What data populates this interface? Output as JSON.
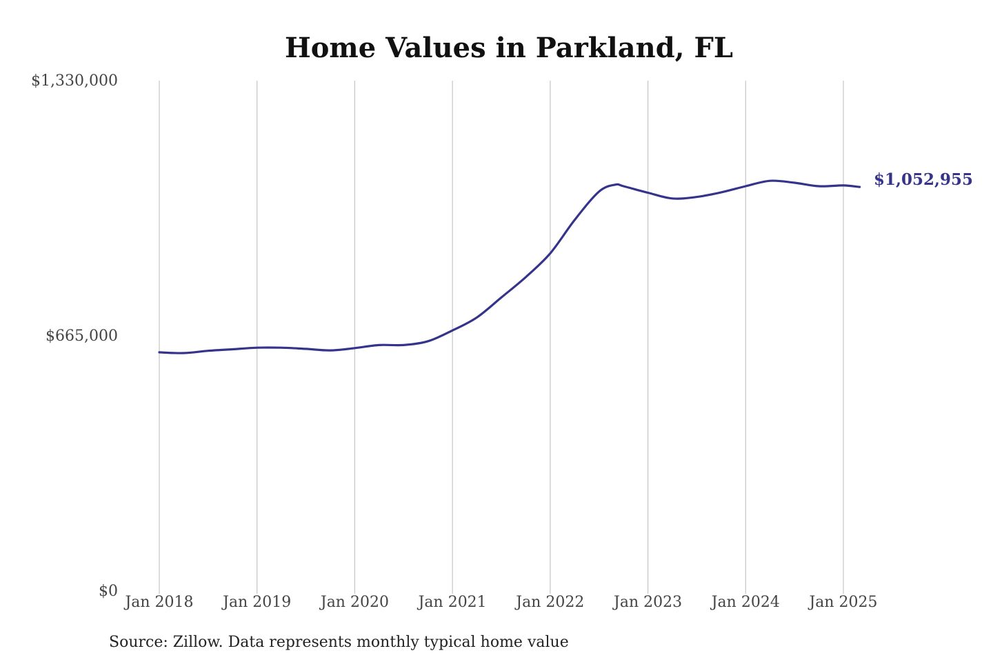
{
  "chart_data": {
    "type": "line",
    "title": "Home Values in Parkland, FL",
    "xlabel": "",
    "ylabel": "",
    "ylim": [
      0,
      1330000
    ],
    "xlim": [
      "2018-01",
      "2025-03"
    ],
    "y_ticks": [
      {
        "value": 0,
        "label": "$0"
      },
      {
        "value": 665000,
        "label": "$665,000"
      },
      {
        "value": 1330000,
        "label": "$1,330,000"
      }
    ],
    "x_ticks": [
      {
        "date": "2018-01",
        "label": "Jan 2018"
      },
      {
        "date": "2019-01",
        "label": "Jan 2019"
      },
      {
        "date": "2020-01",
        "label": "Jan 2020"
      },
      {
        "date": "2021-01",
        "label": "Jan 2021"
      },
      {
        "date": "2022-01",
        "label": "Jan 2022"
      },
      {
        "date": "2023-01",
        "label": "Jan 2023"
      },
      {
        "date": "2024-01",
        "label": "Jan 2024"
      },
      {
        "date": "2025-01",
        "label": "Jan 2025"
      }
    ],
    "grid": {
      "vertical": true,
      "horizontal": false
    },
    "line_color": "#35338a",
    "series": [
      {
        "name": "",
        "points": [
          {
            "x": "2018-01",
            "y": 622000
          },
          {
            "x": "2018-04",
            "y": 620000
          },
          {
            "x": "2018-07",
            "y": 626000
          },
          {
            "x": "2018-10",
            "y": 630000
          },
          {
            "x": "2019-01",
            "y": 634000
          },
          {
            "x": "2019-04",
            "y": 634000
          },
          {
            "x": "2019-07",
            "y": 631000
          },
          {
            "x": "2019-10",
            "y": 627000
          },
          {
            "x": "2020-01",
            "y": 633000
          },
          {
            "x": "2020-04",
            "y": 641000
          },
          {
            "x": "2020-07",
            "y": 641000
          },
          {
            "x": "2020-10",
            "y": 651000
          },
          {
            "x": "2021-01",
            "y": 679000
          },
          {
            "x": "2021-04",
            "y": 713000
          },
          {
            "x": "2021-07",
            "y": 765000
          },
          {
            "x": "2021-10",
            "y": 818000
          },
          {
            "x": "2022-01",
            "y": 880000
          },
          {
            "x": "2022-04",
            "y": 967000
          },
          {
            "x": "2022-07",
            "y": 1041000
          },
          {
            "x": "2022-09",
            "y": 1059000
          },
          {
            "x": "2022-10",
            "y": 1055000
          },
          {
            "x": "2023-01",
            "y": 1038000
          },
          {
            "x": "2023-04",
            "y": 1023000
          },
          {
            "x": "2023-07",
            "y": 1027000
          },
          {
            "x": "2023-10",
            "y": 1039000
          },
          {
            "x": "2024-01",
            "y": 1055000
          },
          {
            "x": "2024-04",
            "y": 1069000
          },
          {
            "x": "2024-07",
            "y": 1064000
          },
          {
            "x": "2024-10",
            "y": 1055000
          },
          {
            "x": "2025-01",
            "y": 1057000
          },
          {
            "x": "2025-03",
            "y": 1052955
          }
        ]
      }
    ],
    "end_label": "$1,052,955",
    "source": "Source: Zillow. Data represents monthly typical home value"
  }
}
